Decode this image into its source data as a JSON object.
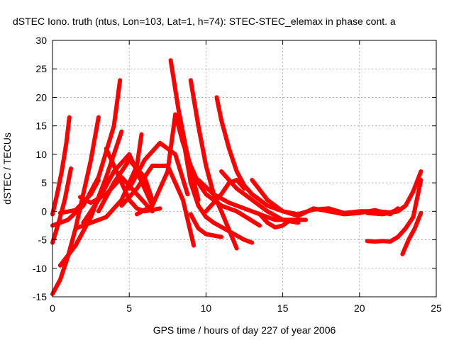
{
  "chart_data": {
    "type": "scatter",
    "title": "dSTEC Iono. truth (ntus, Lon=103, Lat=1, h=74): STEC-STEC_elemax in phase cont. a",
    "xlabel": "GPS time / hours of day 227 of year 2006",
    "ylabel": "dSTEC  / TECUs",
    "xlim": [
      0,
      25
    ],
    "ylim": [
      -15,
      30
    ],
    "xticks": [
      0,
      5,
      10,
      15,
      20,
      25
    ],
    "yticks": [
      -15,
      -10,
      -5,
      0,
      5,
      10,
      15,
      20,
      25,
      30
    ],
    "grid": true,
    "legend": "none",
    "marker": "plus",
    "color": "#ff0000",
    "series": [
      {
        "x": [
          0.0,
          0.3,
          0.6,
          0.9,
          1.1
        ],
        "y": [
          -0.5,
          3,
          7,
          12,
          16.5
        ]
      },
      {
        "x": [
          0.0,
          0.4,
          0.8,
          1.2
        ],
        "y": [
          -5.5,
          -2,
          2,
          7.5
        ]
      },
      {
        "x": [
          0.0,
          0.5,
          1.0,
          1.5,
          2.0,
          2.5,
          3.0
        ],
        "y": [
          -14.5,
          -12,
          -8,
          -3,
          3,
          9,
          16.5
        ]
      },
      {
        "x": [
          0.0,
          1.0,
          2.0,
          3.0,
          4.0,
          4.4
        ],
        "y": [
          -2.5,
          -1.5,
          1,
          6,
          15,
          23
        ]
      },
      {
        "x": [
          0.5,
          1.5,
          2.5,
          3.5,
          4.5
        ],
        "y": [
          -9.5,
          -6,
          -1,
          6,
          14
        ]
      },
      {
        "x": [
          0.5,
          1.5,
          2.5,
          3.0
        ],
        "y": [
          -0.3,
          0.2,
          3,
          5.5
        ]
      },
      {
        "x": [
          1.5,
          2.5,
          3.5,
          4.5,
          5.5,
          5.8
        ],
        "y": [
          -3,
          -2,
          -1,
          2,
          8,
          13.5
        ]
      },
      {
        "x": [
          1.8,
          2.5,
          3.5,
          4.5,
          5.5,
          6.5
        ],
        "y": [
          2.5,
          1.5,
          3,
          6,
          3,
          0
        ]
      },
      {
        "x": [
          2.0,
          3.0,
          4.0,
          5.0,
          6.0,
          6.5
        ],
        "y": [
          -2,
          2,
          7,
          10,
          4,
          1
        ]
      },
      {
        "x": [
          3.0,
          4.0,
          5.0,
          6.0,
          6.5
        ],
        "y": [
          0,
          5,
          9,
          6,
          2
        ]
      },
      {
        "x": [
          3.5,
          4.5,
          5.0,
          5.5,
          6.0,
          7.0
        ],
        "y": [
          11,
          5,
          2,
          0.5,
          0,
          0.5
        ]
      },
      {
        "x": [
          4.5,
          5.5,
          6.5,
          7.5,
          8.5,
          9.2
        ],
        "y": [
          1,
          4,
          8,
          8,
          2,
          -6
        ]
      },
      {
        "x": [
          5.0,
          6.0,
          7.0,
          8.0,
          8.8
        ],
        "y": [
          4,
          9,
          12,
          10,
          3
        ]
      },
      {
        "x": [
          5.5,
          6.5,
          7.5,
          8.0,
          8.7,
          9.5
        ],
        "y": [
          -0.5,
          1,
          7,
          17,
          11,
          2
        ]
      },
      {
        "x": [
          7.7,
          8.2,
          8.7,
          9.0,
          9.3
        ],
        "y": [
          26.5,
          18,
          11,
          7,
          4
        ]
      },
      {
        "x": [
          8.5,
          9.0,
          9.5,
          10.0,
          10.5,
          11.5,
          12.5,
          13.0
        ],
        "y": [
          13,
          5,
          1,
          -1,
          -2,
          -3.5,
          -5,
          -5.5
        ]
      },
      {
        "x": [
          9.0,
          9.5,
          10.0,
          10.5,
          11.0,
          12.0
        ],
        "y": [
          23,
          15,
          8,
          3,
          0,
          -6.5
        ]
      },
      {
        "x": [
          8.0,
          8.5,
          9.0,
          9.5,
          10.0,
          10.5,
          11.0,
          12.0,
          13.5
        ],
        "y": [
          17,
          12,
          8,
          5,
          3,
          2,
          1,
          0,
          -2.5
        ]
      },
      {
        "x": [
          10.7,
          11.0,
          11.5,
          12.0,
          12.5,
          13.0,
          14.0,
          15.0,
          16.0,
          17.0,
          18.0,
          19.0,
          20.0,
          21.0,
          22.0,
          22.5
        ],
        "y": [
          20,
          16,
          11,
          7,
          4.5,
          3,
          1,
          0,
          -0.5,
          0.3,
          0.5,
          -0.3,
          0,
          0,
          -0.2,
          0.3
        ]
      },
      {
        "x": [
          9.5,
          10.5,
          11.5,
          12.5,
          13.5,
          14.5,
          15.5,
          16.5
        ],
        "y": [
          5.5,
          3,
          1.5,
          0.5,
          -0.5,
          -1.5,
          -1.5,
          -1.5
        ]
      },
      {
        "x": [
          9.0,
          9.5,
          10.0,
          11.0
        ],
        "y": [
          -0.5,
          -3,
          -4,
          -4.5
        ]
      },
      {
        "x": [
          10.0,
          11.0,
          11.5,
          12.0,
          12.5
        ],
        "y": [
          0,
          3,
          5,
          5.5,
          4
        ]
      },
      {
        "x": [
          11.0,
          12.0,
          13.0,
          14.0,
          15.0,
          16.0
        ],
        "y": [
          7,
          4,
          2,
          0,
          -1.5,
          -2
        ]
      },
      {
        "x": [
          13.0,
          14.0,
          15.0,
          16.0,
          17.0,
          18.0,
          19.0,
          20.0,
          21.0,
          22.0,
          22.5
        ],
        "y": [
          5.5,
          2,
          0,
          -0.8,
          0.5,
          0,
          -0.5,
          -0.3,
          0.2,
          -0.5,
          0.5
        ]
      },
      {
        "x": [
          13.5,
          14.0,
          14.5,
          15.0,
          15.5
        ],
        "y": [
          -0.5,
          -2,
          -2.8,
          -2.5,
          -1.5
        ]
      },
      {
        "x": [
          20.5,
          21.0,
          21.5,
          22.0,
          22.5,
          23.0,
          23.5,
          24.0
        ],
        "y": [
          -5.2,
          -5.3,
          -5.2,
          -5.3,
          -4.5,
          -3,
          -1,
          5.5
        ]
      },
      {
        "x": [
          20.5,
          21.5,
          22.5,
          23.0,
          23.5,
          24.0
        ],
        "y": [
          -0.3,
          -0.5,
          0,
          1,
          3.5,
          7
        ]
      },
      {
        "x": [
          22.8,
          23.2,
          23.6,
          24.0
        ],
        "y": [
          -7.5,
          -5,
          -3,
          -0.3
        ]
      }
    ]
  }
}
